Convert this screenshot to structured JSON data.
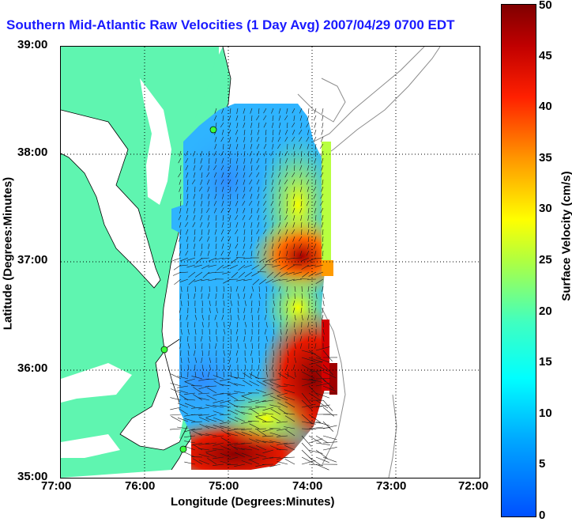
{
  "title": "Southern Mid-Atlantic Raw Velocities (1 Day Avg) 2007/04/29 0700 EDT",
  "axes": {
    "xlabel": "Longitude (Degrees:Minutes)",
    "ylabel": "Latitude (Degrees:Minutes)",
    "x_ticks": [
      "77:00",
      "76:00",
      "75:00",
      "74:00",
      "73:00",
      "72:00"
    ],
    "y_ticks": [
      "39:00",
      "38:00",
      "37:00",
      "36:00",
      "35:00"
    ]
  },
  "colorbar": {
    "label": "Surface Velocity (cm/s)",
    "ticks": [
      "50",
      "45",
      "40",
      "35",
      "30",
      "25",
      "20",
      "15",
      "10",
      "5",
      "0"
    ],
    "min": 0,
    "max": 50
  },
  "colors": {
    "land": "#5ff5b0",
    "title": "#1a1aff",
    "station": "#3cff3c"
  },
  "chart_data": {
    "type": "heatmap",
    "title": "Southern Mid-Atlantic Raw Velocities (1 Day Avg) 2007/04/29 0700 EDT",
    "xlabel": "Longitude (Degrees:Minutes)",
    "ylabel": "Latitude (Degrees:Minutes)",
    "xlim": [
      -77,
      -72
    ],
    "ylim": [
      35,
      39
    ],
    "value_label": "Surface Velocity (cm/s)",
    "value_range": [
      0,
      50
    ],
    "grid": true,
    "regions": [
      {
        "lon": -74.9,
        "lat": 37.9,
        "speed": 8
      },
      {
        "lon": -74.6,
        "lat": 37.1,
        "speed": 40
      },
      {
        "lon": -75.1,
        "lat": 36.1,
        "speed": 7
      },
      {
        "lon": -74.2,
        "lat": 36.0,
        "speed": 48
      },
      {
        "lon": -74.9,
        "lat": 35.2,
        "speed": 50
      },
      {
        "lon": -74.1,
        "lat": 37.6,
        "speed": 22
      }
    ]
  }
}
